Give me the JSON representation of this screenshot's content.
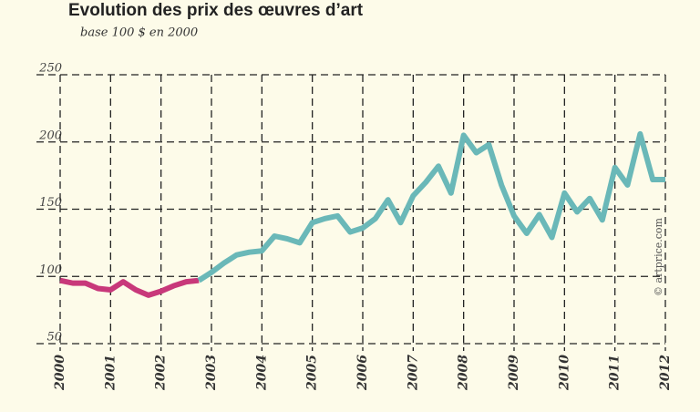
{
  "chart_data": {
    "type": "line",
    "title": "Evolution des prix des œuvres d’art",
    "subtitle": "base 100 $ en 2000",
    "annotation": "© artprice.com",
    "xlim": [
      2000,
      2012
    ],
    "xticks": [
      2000,
      2001,
      2002,
      2003,
      2004,
      2005,
      2006,
      2007,
      2008,
      2009,
      2010,
      2011,
      2012
    ],
    "ylim": [
      50,
      250
    ],
    "yticks": [
      50,
      100,
      150,
      200,
      250
    ],
    "grid": true,
    "series": [
      {
        "color": "#c8387a",
        "x": [
          2000,
          2000.25,
          2000.5,
          2000.75,
          2001,
          2001.25,
          2001.5,
          2001.75,
          2002,
          2002.25,
          2002.5,
          2002.75
        ],
        "values": [
          97,
          95,
          95,
          91,
          90,
          96,
          90,
          86,
          89,
          93,
          96,
          97
        ]
      },
      {
        "color": "#6ab8b8",
        "x": [
          2002.75,
          2003,
          2003.25,
          2003.5,
          2003.75,
          2004,
          2004.25,
          2004.5,
          2004.75,
          2005,
          2005.25,
          2005.5,
          2005.75,
          2006,
          2006.25,
          2006.5,
          2006.75,
          2007,
          2007.25,
          2007.5,
          2007.75,
          2008,
          2008.25,
          2008.5,
          2008.75,
          2009,
          2009.25,
          2009.5,
          2009.75,
          2010,
          2010.25,
          2010.5,
          2010.75,
          2011,
          2011.25,
          2011.5,
          2011.75,
          2012
        ],
        "values": [
          97,
          103,
          110,
          116,
          118,
          119,
          130,
          128,
          125,
          140,
          143,
          145,
          133,
          136,
          143,
          157,
          140,
          160,
          170,
          182,
          162,
          205,
          192,
          198,
          168,
          145,
          132,
          146,
          129,
          162,
          148,
          158,
          142,
          181,
          168,
          206,
          172,
          172
        ]
      }
    ]
  }
}
